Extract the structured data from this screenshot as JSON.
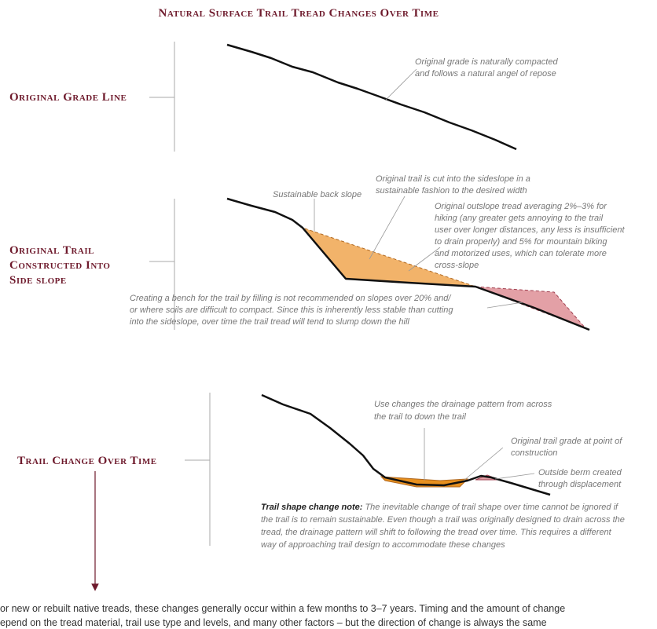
{
  "title": "Natural Surface Trail Tread Changes Over Time",
  "sections": [
    {
      "label": [
        "Original Grade Line"
      ],
      "notes": [
        [
          "Original grade is naturally compacted",
          "and follows a natural angel of repose"
        ]
      ]
    },
    {
      "label": [
        "Original Trail",
        "Constructed Into",
        "Side slope"
      ],
      "notes": [
        [
          "Sustainable back slope"
        ],
        [
          "Original trail is cut into the sideslope in a",
          "sustainable fashion to the desired width"
        ],
        [
          "Original outslope tread averaging 2%–3% for",
          "hiking (any greater gets annoying to the trail",
          "user over longer distances, any less is insufficient",
          "to drain properly) and 5% for mountain biking",
          "and motorized uses, which can tolerate more",
          "cross-slope"
        ],
        [
          "Creating a bench for the trail by filling is not recommended on slopes over 20% and/",
          "or where soils are difficult to compact. Since this is inherently less stable than cutting",
          "into the sideslope, over time the trail tread will tend to slump down the hill"
        ]
      ]
    },
    {
      "label": [
        "Trail Change Over Time"
      ],
      "notes": [
        [
          "Use changes the drainage pattern from across",
          "the trail to down the trail"
        ],
        [
          "Original trail grade at point of",
          "construction"
        ],
        [
          "Outside berm created",
          "through displacement"
        ]
      ],
      "shape_note": {
        "heading": "Trail shape change note:",
        "lines": [
          "The inevitable change of trail shape over time cannot be ignored if",
          "the trail is to remain sustainable. Even though a trail was originally designed to drain across the",
          "tread, the drainage pattern will shift to following the tread over time. This requires a different",
          "way of approaching trail design to accommodate these changes"
        ]
      }
    }
  ],
  "footer": [
    "or new or rebuilt native treads, these changes generally occur within a few months to 3–7 years. Timing and the amount of change",
    "epend on the tread material, trail use type and levels, and many other factors – but the direction of change is always the same"
  ]
}
